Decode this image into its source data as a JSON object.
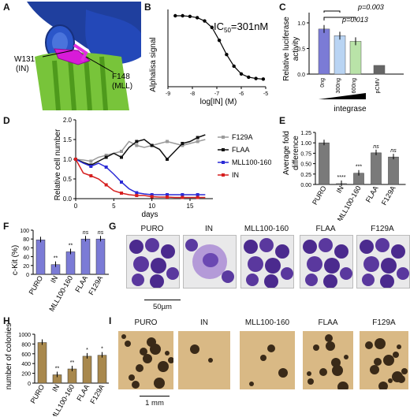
{
  "panel_labels": {
    "a": "A",
    "b": "B",
    "c": "C",
    "d": "D",
    "e": "E",
    "f": "F",
    "g": "G",
    "h": "H",
    "i": "I"
  },
  "panel_a": {
    "label_in": "W131",
    "label_in2": "(IN)",
    "label_mll": "F148",
    "label_mll2": "(MLL)"
  },
  "panel_b": {
    "ylabel": "Alphalisa signal",
    "xlabel": "log[IN] (M)",
    "ic50_text": "IC",
    "ic50_sub": "50",
    "ic50_val": "=301nM",
    "ticks_x": [
      "-9",
      "-8",
      "-7",
      "-6",
      "-5"
    ],
    "chart_data": {
      "type": "line",
      "x": [
        -8.7,
        -8.4,
        -8.1,
        -7.8,
        -7.5,
        -7.2,
        -6.9,
        -6.6,
        -6.3,
        -6.0,
        -5.7,
        -5.4,
        -5.1
      ],
      "y": [
        1.0,
        1.0,
        0.99,
        0.97,
        0.92,
        0.82,
        0.62,
        0.4,
        0.22,
        0.1,
        0.05,
        0.03,
        0.02
      ],
      "xlim": [
        -9,
        -5
      ]
    }
  },
  "panel_c": {
    "ylabel": "Relative luciferase",
    "ylabel2": "activity",
    "xlabel": "integrase",
    "ticks_y": [
      "0.0",
      "0.5",
      "1.0"
    ],
    "p1": "p=0.013",
    "p2": "p=0.003",
    "chart_data": {
      "type": "bar",
      "categories": [
        "0ng",
        "300ng",
        "600ng",
        "pCMV"
      ],
      "values": [
        0.88,
        0.75,
        0.64,
        0.17
      ],
      "ylim": [
        0,
        1.2
      ],
      "colors": [
        "#7b7bd6",
        "#b9d4f3",
        "#b9e3a8",
        "#666666"
      ]
    }
  },
  "panel_d": {
    "ylabel": "Relative cell number",
    "xlabel": "days",
    "ticks_x": [
      "0",
      "5",
      "10",
      "15"
    ],
    "ticks_y": [
      "0.0",
      "0.5",
      "1.0",
      "1.5",
      "2.0"
    ],
    "chart_data": {
      "type": "line",
      "xlim": [
        0,
        18
      ],
      "ylim": [
        0,
        2
      ],
      "series": [
        {
          "name": "F129A",
          "color": "#9a9a9a",
          "x": [
            0,
            1,
            2,
            3,
            4,
            5,
            6,
            7,
            8,
            9,
            10,
            11,
            12,
            13,
            14,
            15,
            16,
            17
          ],
          "y": [
            1.0,
            0.98,
            0.95,
            1.05,
            1.1,
            1.15,
            1.2,
            1.45,
            1.35,
            1.3,
            1.35,
            1.4,
            1.45,
            1.4,
            1.35,
            1.4,
            1.45,
            1.5
          ]
        },
        {
          "name": "FLAA",
          "color": "#111111",
          "x": [
            0,
            1,
            2,
            3,
            4,
            5,
            6,
            7,
            8,
            9,
            10,
            11,
            12,
            13,
            14,
            15,
            16,
            17
          ],
          "y": [
            1.0,
            0.92,
            0.85,
            0.95,
            1.05,
            1.15,
            1.05,
            1.3,
            1.45,
            1.5,
            1.35,
            1.25,
            1.0,
            1.2,
            1.4,
            1.45,
            1.55,
            1.62
          ]
        },
        {
          "name": "MLL100-160",
          "color": "#2a2ad6",
          "x": [
            0,
            1,
            2,
            3,
            4,
            5,
            6,
            7,
            8,
            9,
            10,
            11,
            12,
            13,
            14,
            15,
            16,
            17
          ],
          "y": [
            1.0,
            0.9,
            0.82,
            0.9,
            0.8,
            0.62,
            0.42,
            0.25,
            0.15,
            0.12,
            0.1,
            0.1,
            0.1,
            0.1,
            0.1,
            0.1,
            0.1,
            0.1
          ]
        },
        {
          "name": "IN",
          "color": "#d62020",
          "x": [
            0,
            1,
            2,
            3,
            4,
            5,
            6,
            7,
            8,
            9,
            10,
            11,
            12,
            13,
            14,
            15,
            16,
            17
          ],
          "y": [
            1.0,
            0.65,
            0.58,
            0.5,
            0.35,
            0.2,
            0.14,
            0.1,
            0.08,
            0.08,
            0.05,
            0.04,
            0.04,
            0.03,
            0.03,
            0.03,
            0.03,
            0.03
          ]
        }
      ]
    }
  },
  "panel_e": {
    "ylabel": "Average fold",
    "ylabel2": "difference",
    "ticks_y": [
      "0.00",
      "0.25",
      "0.50",
      "0.75",
      "1.00",
      "1.25"
    ],
    "chart_data": {
      "type": "bar",
      "categories": [
        "PURO",
        "IN",
        "MLL100-160",
        "FLAA",
        "F129A"
      ],
      "values": [
        1.0,
        0.02,
        0.27,
        0.76,
        0.66
      ],
      "ylim": [
        0,
        1.25
      ],
      "annot": [
        "",
        "****",
        "***",
        "ns",
        "ns"
      ]
    }
  },
  "panel_f": {
    "ylabel": "c-Kit (%)",
    "ticks_y": [
      "0",
      "20",
      "40",
      "60",
      "80",
      "100"
    ],
    "chart_data": {
      "type": "bar",
      "categories": [
        "PURO",
        "IN",
        "MLL100-160",
        "FLAA",
        "F129A"
      ],
      "values": [
        78,
        22,
        51,
        80,
        80
      ],
      "ylim": [
        0,
        100
      ],
      "annot": [
        "",
        "**",
        "**",
        "ns",
        "ns"
      ]
    }
  },
  "panel_g": {
    "titles": [
      "PURO",
      "IN",
      "MLL100-160",
      "FLAA",
      "F129A"
    ],
    "scale": "50µm"
  },
  "panel_h": {
    "ylabel": "number of colonies",
    "ticks_y": [
      "0",
      "200",
      "400",
      "600",
      "800",
      "1000"
    ],
    "chart_data": {
      "type": "bar",
      "categories": [
        "PURO",
        "IN",
        "MLL100-160",
        "FLAA",
        "F129A"
      ],
      "values": [
        830,
        170,
        290,
        550,
        570
      ],
      "ylim": [
        0,
        1000
      ],
      "annot": [
        "",
        "**",
        "**",
        "*",
        "*"
      ]
    }
  },
  "panel_i": {
    "titles": [
      "PURO",
      "IN",
      "MLL100-160",
      "FLAA",
      "F129A"
    ],
    "scale": "1 mm"
  }
}
